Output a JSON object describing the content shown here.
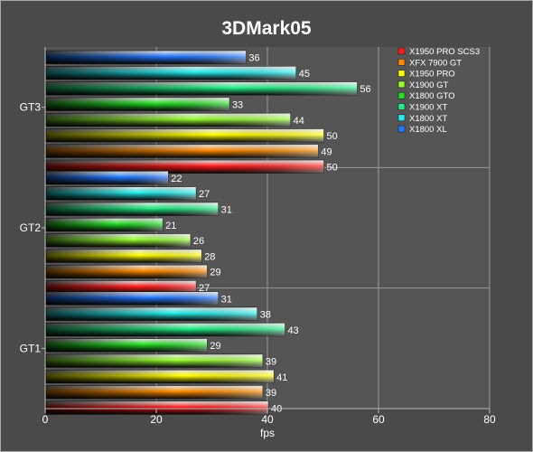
{
  "chart_data": {
    "type": "bar",
    "orientation": "horizontal",
    "title": "3DMark05",
    "xlabel": "fps",
    "ylabel": "",
    "xlim": [
      0,
      80
    ],
    "x_ticks": [
      "0",
      "20",
      "40",
      "60",
      "80"
    ],
    "grid": true,
    "legend_position": "top-right",
    "categories": [
      "GT3",
      "GT2",
      "GT1"
    ],
    "series": [
      {
        "name": "X1950 PRO SCS3",
        "color": "#ff1a1a",
        "values": [
          50,
          27,
          40
        ]
      },
      {
        "name": "XFX 7900 GT",
        "color": "#ff8a00",
        "values": [
          49,
          29,
          39
        ]
      },
      {
        "name": "X1950 PRO",
        "color": "#ffff00",
        "values": [
          50,
          28,
          41
        ]
      },
      {
        "name": "X1900 GT",
        "color": "#99ff33",
        "values": [
          44,
          26,
          39
        ]
      },
      {
        "name": "X1800 GTO",
        "color": "#22dd22",
        "values": [
          33,
          21,
          29
        ]
      },
      {
        "name": "X1900 XT",
        "color": "#22ee88",
        "values": [
          56,
          31,
          43
        ]
      },
      {
        "name": "X1800 XT",
        "color": "#22eeee",
        "values": [
          45,
          27,
          38
        ]
      },
      {
        "name": "X1800 XL",
        "color": "#2277ff",
        "values": [
          36,
          22,
          31
        ]
      }
    ]
  }
}
